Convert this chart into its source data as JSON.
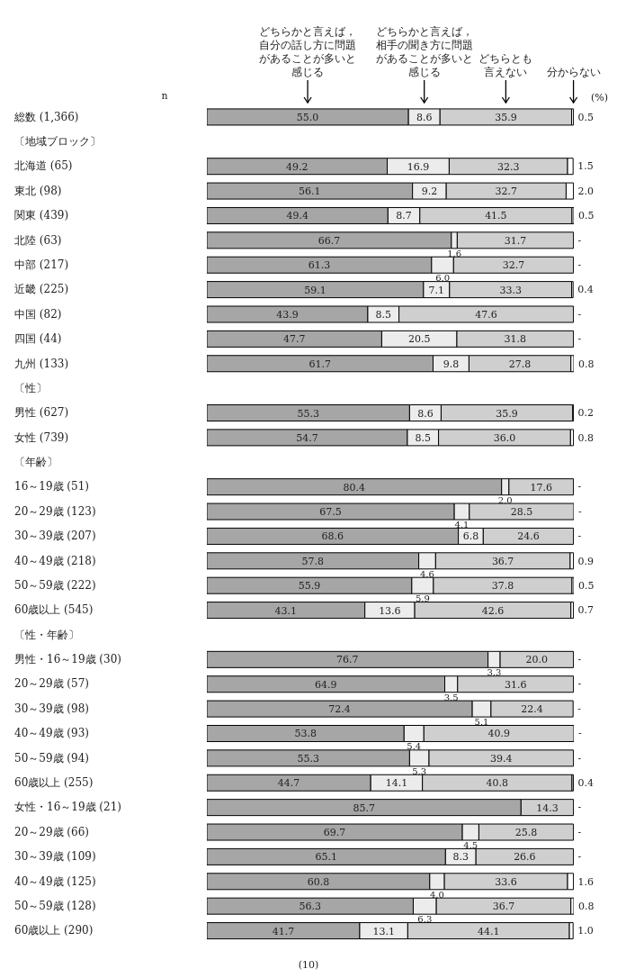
{
  "chart_data": {
    "type": "bar",
    "orientation": "horizontal",
    "stacked": true,
    "legend": false,
    "categories": [
      "総数 (1,366)",
      "〔地域ブロック〕",
      "北海道 (65)",
      "東北 (98)",
      "関東 (439)",
      "北陸 (63)",
      "中部 (217)",
      "近畿 (225)",
      "中国 (82)",
      "四国 (44)",
      "九州 (133)",
      "〔性〕",
      "男性 (627)",
      "女性 (739)",
      "〔年齢〕",
      "16～19歳 (51)",
      "20～29歳 (123)",
      "30～39歳 (207)",
      "40～49歳 (218)",
      "50～59歳 (222)",
      "60歳以上 (545)",
      "〔性・年齢〕",
      "男性・16～19歳 (30)",
      "20～29歳 (57)",
      "30～39歳 (98)",
      "40～49歳 (93)",
      "50～59歳 (94)",
      "60歳以上 (255)",
      "女性・16～19歳 (21)",
      "20～29歳 (66)",
      "30～39歳 (109)",
      "40～49歳 (125)",
      "50～59歳 (128)",
      "60歳以上 (290)"
    ],
    "series": [
      {
        "name": "どちらかと言えば，自分の話し方に問題があることが多いと感じる",
        "color": "#a6a6a6",
        "values": [
          55.0,
          null,
          49.2,
          56.1,
          49.4,
          66.7,
          61.3,
          59.1,
          43.9,
          47.7,
          61.7,
          null,
          55.3,
          54.7,
          null,
          80.4,
          67.5,
          68.6,
          57.8,
          55.9,
          43.1,
          null,
          76.7,
          64.9,
          72.4,
          53.8,
          55.3,
          44.7,
          85.7,
          69.7,
          65.1,
          60.8,
          56.3,
          41.7
        ],
        "value_labels": [
          "55.0",
          null,
          "49.2",
          "56.1",
          "49.4",
          "66.7",
          "61.3",
          "59.1",
          "43.9",
          "47.7",
          "61.7",
          null,
          "55.3",
          "54.7",
          null,
          "80.4",
          "67.5",
          "68.6",
          "57.8",
          "55.9",
          "43.1",
          null,
          "76.7",
          "64.9",
          "72.4",
          "53.8",
          "55.3",
          "44.7",
          "85.7",
          "69.7",
          "65.1",
          "60.8",
          "56.3",
          "41.7"
        ]
      },
      {
        "name": "どちらかと言えば，相手の聞き方に問題があることが多いと感じる",
        "color": "#ececec",
        "values": [
          8.6,
          null,
          16.9,
          9.2,
          8.7,
          1.6,
          6.0,
          7.1,
          8.5,
          20.5,
          9.8,
          null,
          8.6,
          8.5,
          null,
          2.0,
          4.1,
          6.8,
          4.6,
          5.9,
          13.6,
          null,
          3.3,
          3.5,
          5.1,
          5.4,
          5.3,
          14.1,
          0,
          4.5,
          8.3,
          4.0,
          6.3,
          13.1
        ],
        "value_labels": [
          "8.6",
          null,
          "16.9",
          "9.2",
          "8.7",
          "1.6",
          "6.0",
          "7.1",
          "8.5",
          "20.5",
          "9.8",
          null,
          "8.6",
          "8.5",
          null,
          "2.0",
          "4.1",
          "6.8",
          "4.6",
          "5.9",
          "13.6",
          null,
          "3.3",
          "3.5",
          "5.1",
          "5.4",
          "5.3",
          "14.1",
          null,
          "4.5",
          "8.3",
          "4.0",
          "6.3",
          "13.1"
        ]
      },
      {
        "name": "どちらとも言えない",
        "color": "#cfcfcf",
        "values": [
          35.9,
          null,
          32.3,
          32.7,
          41.5,
          31.7,
          32.7,
          33.3,
          47.6,
          31.8,
          27.8,
          null,
          35.9,
          36.0,
          null,
          17.6,
          28.5,
          24.6,
          36.7,
          37.8,
          42.6,
          null,
          20.0,
          31.6,
          22.4,
          40.9,
          39.4,
          40.8,
          14.3,
          25.8,
          26.6,
          33.6,
          36.7,
          44.1
        ],
        "value_labels": [
          "35.9",
          null,
          "32.3",
          "32.7",
          "41.5",
          "31.7",
          "32.7",
          "33.3",
          "47.6",
          "31.8",
          "27.8",
          null,
          "35.9",
          "36.0",
          null,
          "17.6",
          "28.5",
          "24.6",
          "36.7",
          "37.8",
          "42.6",
          null,
          "20.0",
          "31.6",
          "22.4",
          "40.9",
          "39.4",
          "40.8",
          "14.3",
          "25.8",
          "26.6",
          "33.6",
          "36.7",
          "44.1"
        ]
      },
      {
        "name": "分からない",
        "color": "#ffffff",
        "values": [
          0.5,
          null,
          1.5,
          2.0,
          0.5,
          0,
          0,
          0.4,
          0,
          0,
          0.8,
          null,
          0.2,
          0.8,
          null,
          0,
          0,
          0,
          0.9,
          0.5,
          0.7,
          null,
          0,
          0,
          0,
          0,
          0,
          0.4,
          0,
          0,
          0,
          1.6,
          0.8,
          1.0
        ],
        "value_labels": [
          "0.5",
          null,
          "1.5",
          "2.0",
          "0.5",
          "-",
          "-",
          "0.4",
          "-",
          "-",
          "0.8",
          null,
          "0.2",
          "0.8",
          null,
          "-",
          "-",
          "-",
          "0.9",
          "0.5",
          "0.7",
          null,
          "-",
          "-",
          "-",
          "-",
          "-",
          "0.4",
          "-",
          "-",
          "-",
          "1.6",
          "0.8",
          "1.0"
        ]
      }
    ],
    "annotations": [
      "n",
      "(%)",
      "(10)"
    ]
  }
}
